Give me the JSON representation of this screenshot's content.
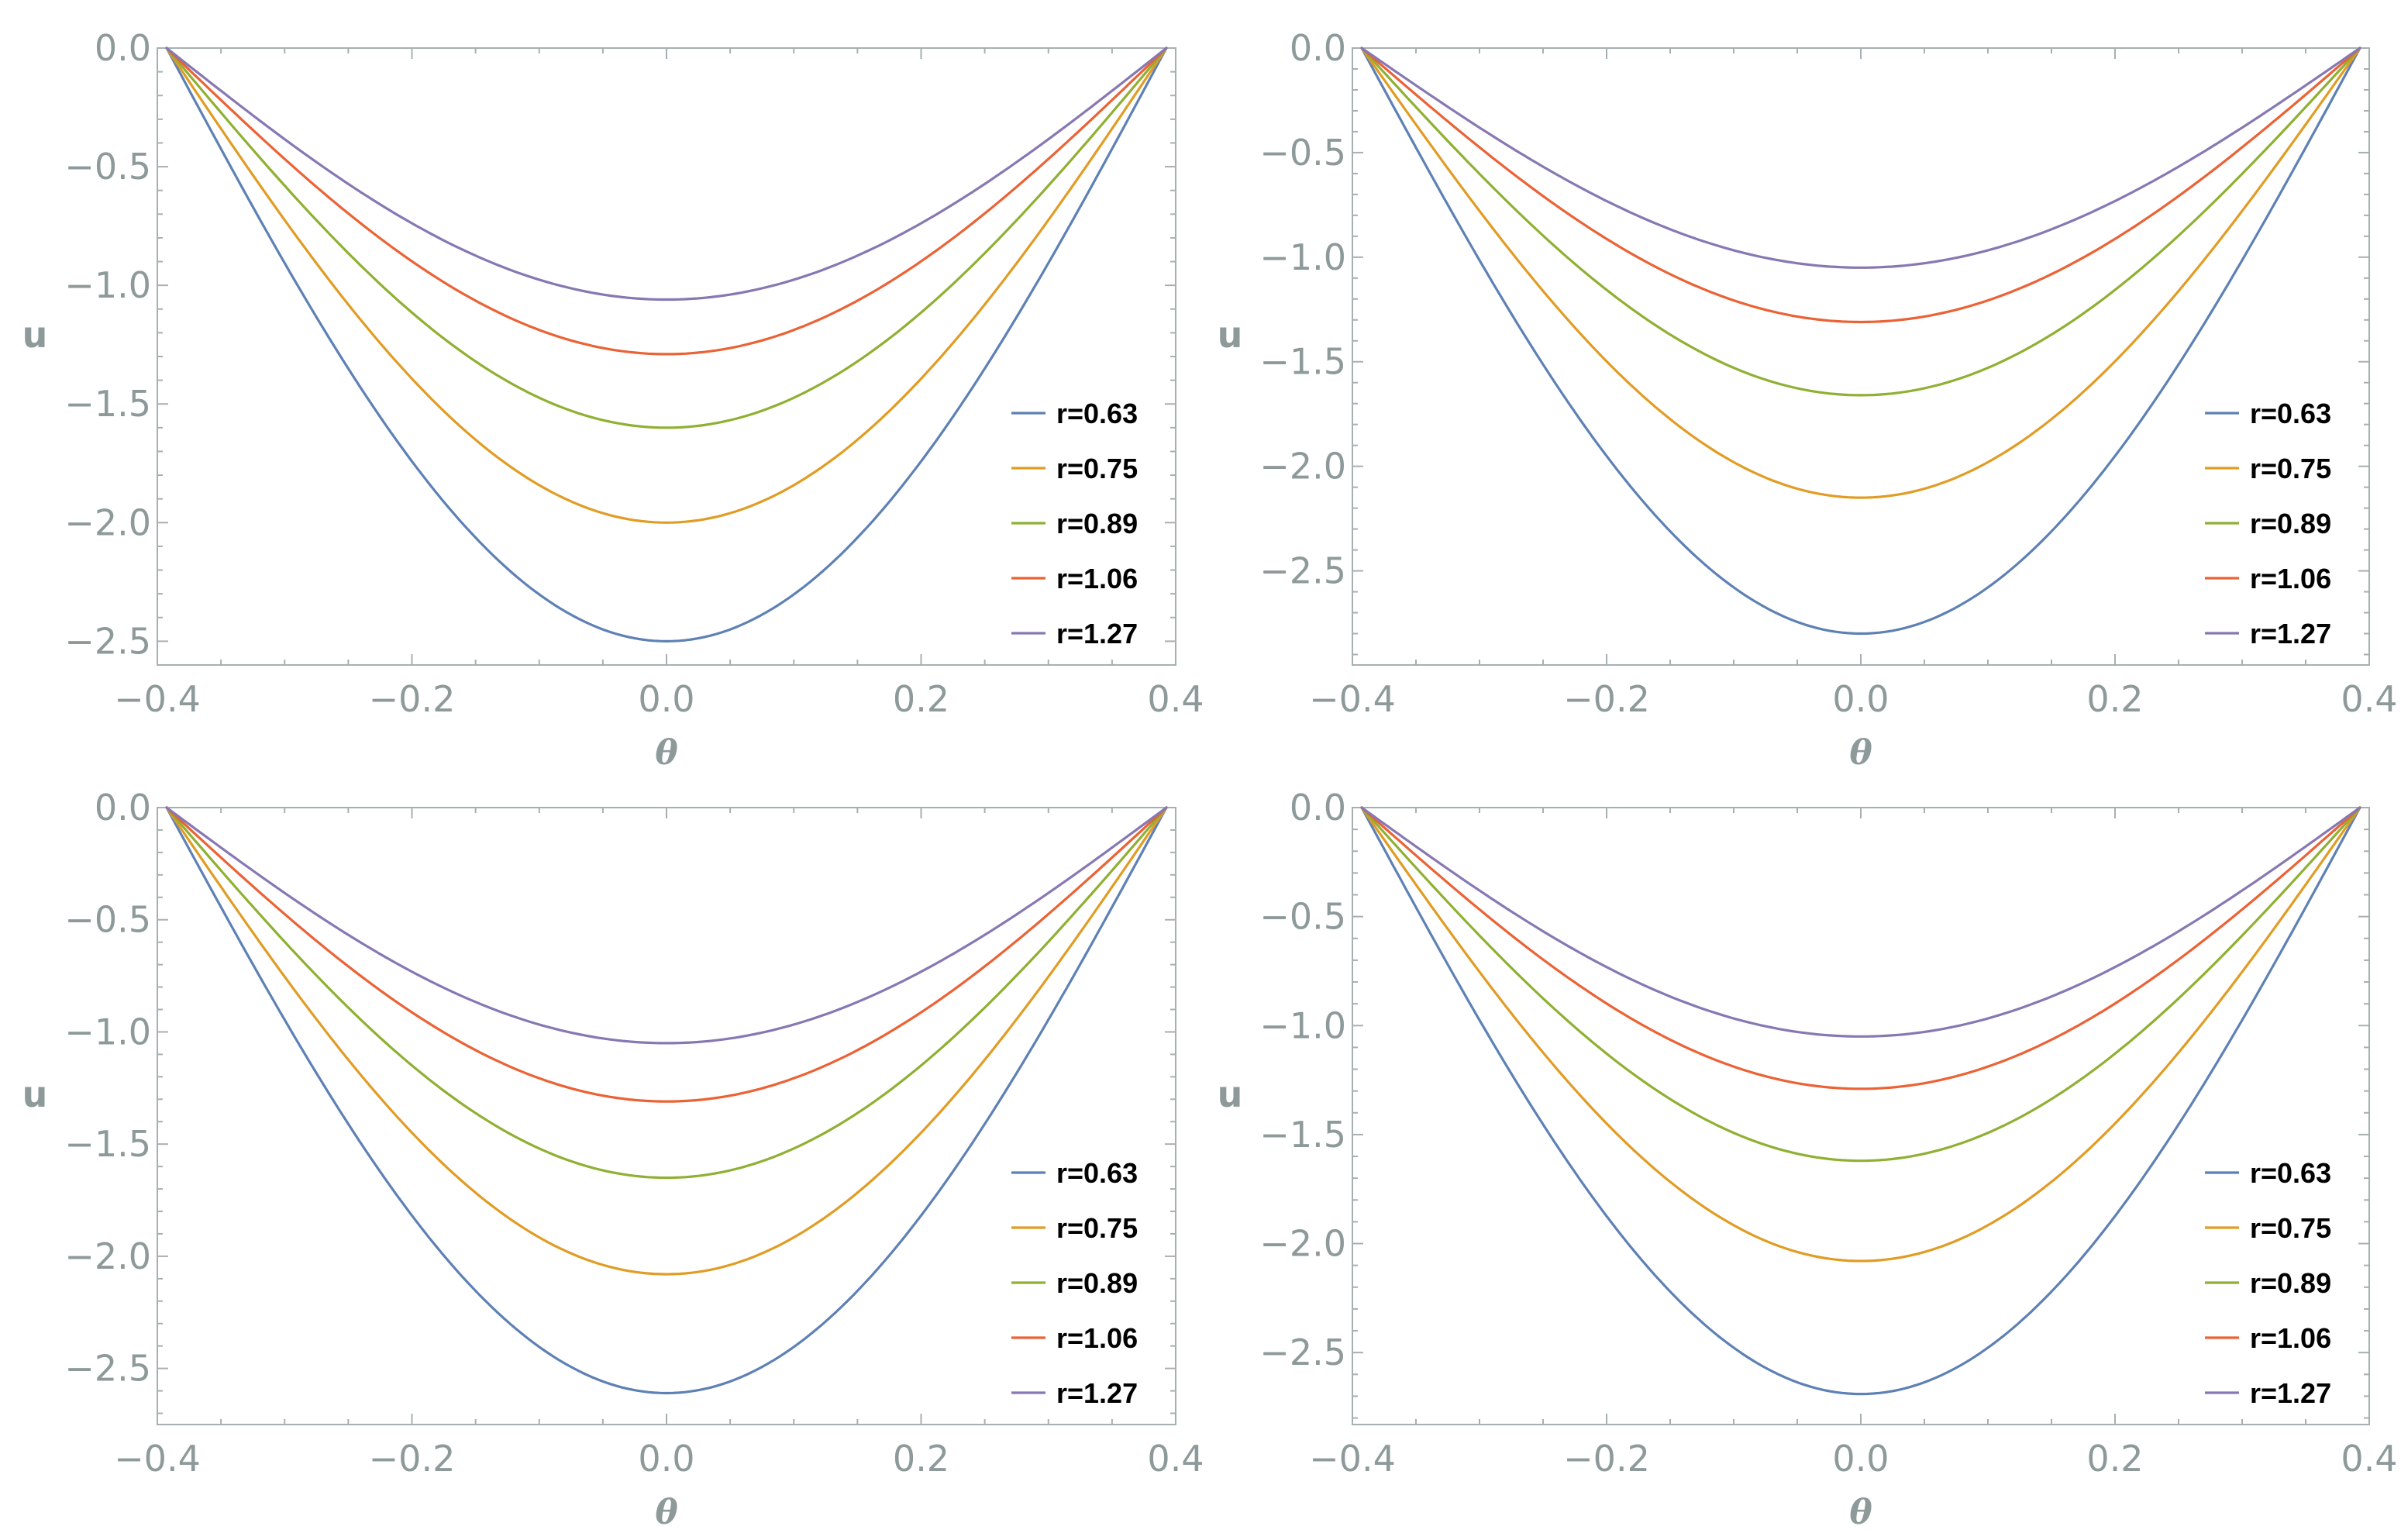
{
  "chart_data": [
    {
      "type": "line",
      "panel": "top-left",
      "xlabel": "θ",
      "ylabel": "u",
      "xlim": [
        -0.4,
        0.4
      ],
      "ylim": [
        -2.6,
        0.0
      ],
      "xticks": [
        -0.4,
        -0.2,
        0.0,
        0.2,
        0.4
      ],
      "xtick_labels": [
        "-0.4",
        "-0.2",
        "0.0",
        "0.2",
        "0.4"
      ],
      "yticks": [
        0.0,
        -0.5,
        -1.0,
        -1.5,
        -2.0,
        -2.5
      ],
      "ytick_labels": [
        "0.0",
        "-0.5",
        "-1.0",
        "-1.5",
        "-2.0",
        "-2.5"
      ],
      "legend_position": "lower-right",
      "x_endpoints": [
        -0.3927,
        0.3927
      ],
      "series": [
        {
          "name": "r=0.63",
          "color": "#5e81b5",
          "min_at_zero": -2.5
        },
        {
          "name": "r=0.75",
          "color": "#e19c24",
          "min_at_zero": -2.0
        },
        {
          "name": "r=0.89",
          "color": "#8fb032",
          "min_at_zero": -1.6
        },
        {
          "name": "r=1.06",
          "color": "#eb6235",
          "min_at_zero": -1.29
        },
        {
          "name": "r=1.27",
          "color": "#8778b3",
          "min_at_zero": -1.06
        }
      ]
    },
    {
      "type": "line",
      "panel": "top-right",
      "xlabel": "θ",
      "ylabel": "u",
      "xlim": [
        -0.4,
        0.4
      ],
      "ylim": [
        -2.95,
        0.0
      ],
      "xticks": [
        -0.4,
        -0.2,
        0.0,
        0.2,
        0.4
      ],
      "xtick_labels": [
        "-0.4",
        "-0.2",
        "0.0",
        "0.2",
        "0.4"
      ],
      "yticks": [
        0.0,
        -0.5,
        -1.0,
        -1.5,
        -2.0,
        -2.5
      ],
      "ytick_labels": [
        "0.0",
        "-0.5",
        "-1.0",
        "-1.5",
        "-2.0",
        "-2.5"
      ],
      "legend_position": "lower-right",
      "x_endpoints": [
        -0.3927,
        0.3927
      ],
      "series": [
        {
          "name": "r=0.63",
          "color": "#5e81b5",
          "min_at_zero": -2.8
        },
        {
          "name": "r=0.75",
          "color": "#e19c24",
          "min_at_zero": -2.15
        },
        {
          "name": "r=0.89",
          "color": "#8fb032",
          "min_at_zero": -1.66
        },
        {
          "name": "r=1.06",
          "color": "#eb6235",
          "min_at_zero": -1.31
        },
        {
          "name": "r=1.27",
          "color": "#8778b3",
          "min_at_zero": -1.05
        }
      ]
    },
    {
      "type": "line",
      "panel": "bottom-left",
      "xlabel": "θ",
      "ylabel": "u",
      "xlim": [
        -0.4,
        0.4
      ],
      "ylim": [
        -2.75,
        0.0
      ],
      "xticks": [
        -0.4,
        -0.2,
        0.0,
        0.2,
        0.4
      ],
      "xtick_labels": [
        "-0.4",
        "-0.2",
        "0.0",
        "0.2",
        "0.4"
      ],
      "yticks": [
        0.0,
        -0.5,
        -1.0,
        -1.5,
        -2.0,
        -2.5
      ],
      "ytick_labels": [
        "0.0",
        "-0.5",
        "-1.0",
        "-1.5",
        "-2.0",
        "-2.5"
      ],
      "legend_position": "lower-right",
      "x_endpoints": [
        -0.3927,
        0.3927
      ],
      "series": [
        {
          "name": "r=0.63",
          "color": "#5e81b5",
          "min_at_zero": -2.61
        },
        {
          "name": "r=0.75",
          "color": "#e19c24",
          "min_at_zero": -2.08
        },
        {
          "name": "r=0.89",
          "color": "#8fb032",
          "min_at_zero": -1.65
        },
        {
          "name": "r=1.06",
          "color": "#eb6235",
          "min_at_zero": -1.31
        },
        {
          "name": "r=1.27",
          "color": "#8778b3",
          "min_at_zero": -1.05
        }
      ]
    },
    {
      "type": "line",
      "panel": "bottom-right",
      "xlabel": "θ",
      "ylabel": "u",
      "xlim": [
        -0.4,
        0.4
      ],
      "ylim": [
        -2.83,
        0.0
      ],
      "xticks": [
        -0.4,
        -0.2,
        0.0,
        0.2,
        0.4
      ],
      "xtick_labels": [
        "-0.4",
        "-0.2",
        "0.0",
        "0.2",
        "0.4"
      ],
      "yticks": [
        0.0,
        -0.5,
        -1.0,
        -1.5,
        -2.0,
        -2.5
      ],
      "ytick_labels": [
        "0.0",
        "-0.5",
        "-1.0",
        "-1.5",
        "-2.0",
        "-2.5"
      ],
      "legend_position": "lower-right",
      "x_endpoints": [
        -0.3927,
        0.3927
      ],
      "series": [
        {
          "name": "r=0.63",
          "color": "#5e81b5",
          "min_at_zero": -2.69
        },
        {
          "name": "r=0.75",
          "color": "#e19c24",
          "min_at_zero": -2.08
        },
        {
          "name": "r=0.89",
          "color": "#8fb032",
          "min_at_zero": -1.62
        },
        {
          "name": "r=1.06",
          "color": "#eb6235",
          "min_at_zero": -1.29
        },
        {
          "name": "r=1.27",
          "color": "#8778b3",
          "min_at_zero": -1.05
        }
      ]
    }
  ]
}
